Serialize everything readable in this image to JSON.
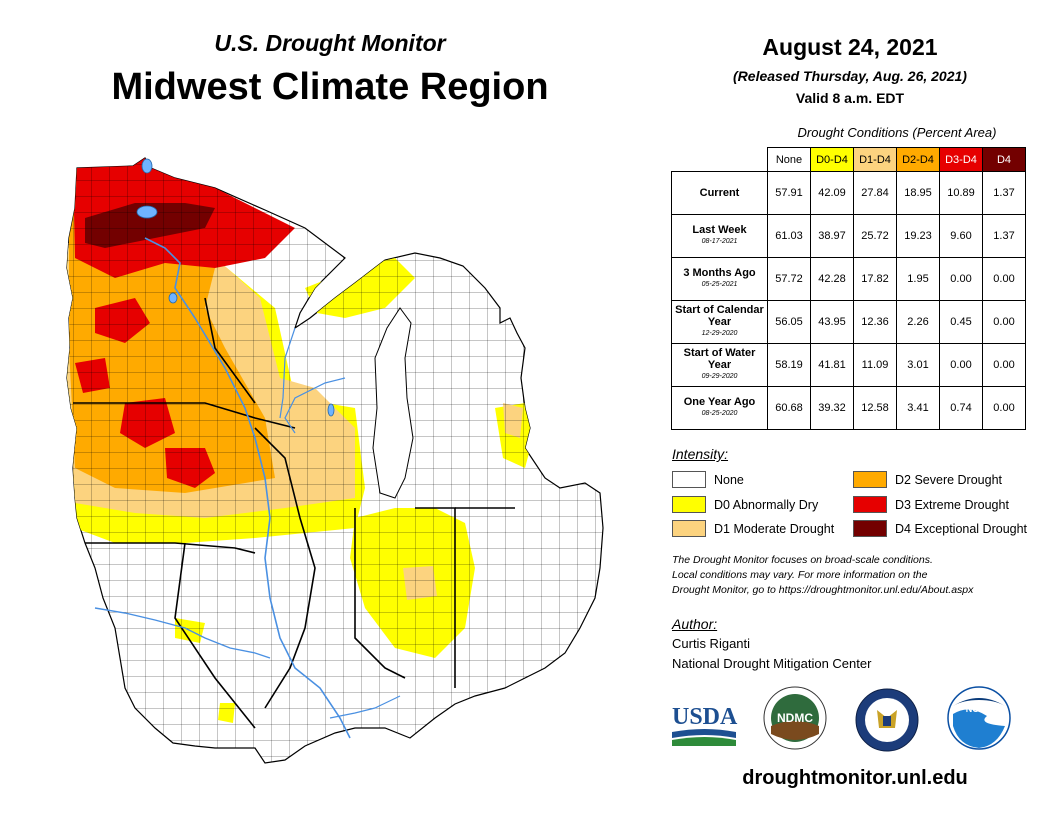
{
  "header": {
    "subtitle": "U.S. Drought Monitor",
    "title": "Midwest Climate Region",
    "date": "August 24, 2021",
    "released": "(Released Thursday, Aug. 26, 2021)",
    "valid": "Valid 8 a.m. EDT"
  },
  "table": {
    "caption": "Drought Conditions (Percent Area)",
    "columns": [
      "None",
      "D0-D4",
      "D1-D4",
      "D2-D4",
      "D3-D4",
      "D4"
    ],
    "column_colors": [
      "#ffffff",
      "#ffff00",
      "#fcd37f",
      "#ffaa00",
      "#e60000",
      "#730000"
    ],
    "rows": [
      {
        "label": "Current",
        "date": "",
        "values": [
          "57.91",
          "42.09",
          "27.84",
          "18.95",
          "10.89",
          "1.37"
        ]
      },
      {
        "label": "Last Week",
        "date": "08-17-2021",
        "values": [
          "61.03",
          "38.97",
          "25.72",
          "19.23",
          "9.60",
          "1.37"
        ]
      },
      {
        "label": "3 Months Ago",
        "date": "05-25-2021",
        "values": [
          "57.72",
          "42.28",
          "17.82",
          "1.95",
          "0.00",
          "0.00"
        ]
      },
      {
        "label": "Start of Calendar Year",
        "date": "12-29-2020",
        "values": [
          "56.05",
          "43.95",
          "12.36",
          "2.26",
          "0.45",
          "0.00"
        ]
      },
      {
        "label": "Start of Water Year",
        "date": "09-29-2020",
        "values": [
          "58.19",
          "41.81",
          "11.09",
          "3.01",
          "0.00",
          "0.00"
        ]
      },
      {
        "label": "One Year Ago",
        "date": "08-25-2020",
        "values": [
          "60.68",
          "39.32",
          "12.58",
          "3.41",
          "0.74",
          "0.00"
        ]
      }
    ]
  },
  "legend": {
    "title": "Intensity:",
    "items": [
      {
        "label": "None",
        "color": "#ffffff"
      },
      {
        "label": "D0 Abnormally Dry",
        "color": "#ffff00"
      },
      {
        "label": "D1 Moderate Drought",
        "color": "#fcd37f"
      },
      {
        "label": "D2 Severe Drought",
        "color": "#ffaa00"
      },
      {
        "label": "D3 Extreme Drought",
        "color": "#e60000"
      },
      {
        "label": "D4 Exceptional Drought",
        "color": "#730000"
      }
    ]
  },
  "note": {
    "line1": "The Drought Monitor focuses on broad-scale conditions.",
    "line2": "Local conditions may vary. For more information on the",
    "line3": "Drought Monitor, go to https://droughtmonitor.unl.edu/About.aspx"
  },
  "author": {
    "title": "Author:",
    "name": "Curtis Riganti",
    "org": "National Drought Mitigation Center"
  },
  "logos": {
    "usda": "USDA",
    "ndmc": "NDMC",
    "noaa": "NOAA"
  },
  "website": "droughtmonitor.unl.edu"
}
